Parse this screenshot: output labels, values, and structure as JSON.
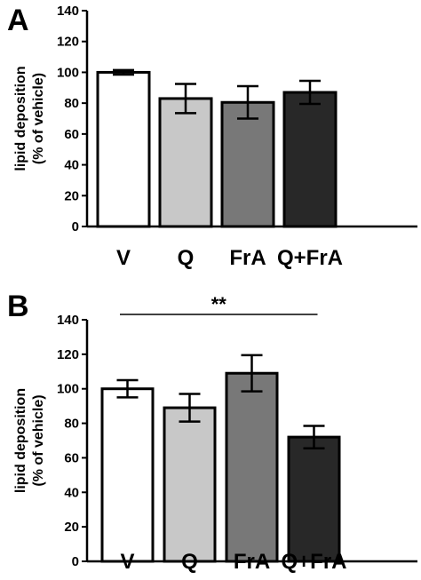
{
  "chart_data": [
    {
      "type": "bar",
      "panel_label": "A",
      "categories": [
        "V",
        "Q",
        "FrA",
        "Q+FrA"
      ],
      "values": [
        100,
        83,
        80.5,
        87
      ],
      "errors": [
        1.5,
        9.5,
        10.5,
        7.5
      ],
      "bar_colors": [
        "#ffffff",
        "#c8c8c8",
        "#787878",
        "#282828"
      ],
      "ylabel_line1": "lipid deposition",
      "ylabel_line2": "(% of vehicle)",
      "yticks": [
        0,
        20,
        40,
        60,
        80,
        100,
        120,
        140
      ],
      "ylim": [
        0,
        140
      ],
      "significance": null
    },
    {
      "type": "bar",
      "panel_label": "B",
      "categories": [
        "V",
        "Q",
        "FrA",
        "Q+FrA"
      ],
      "values": [
        100,
        89,
        109,
        72
      ],
      "errors": [
        5,
        8,
        10.5,
        6.5
      ],
      "bar_colors": [
        "#ffffff",
        "#c8c8c8",
        "#787878",
        "#282828"
      ],
      "ylabel_line1": "lipid deposition",
      "ylabel_line2": "(% of vehicle)",
      "yticks": [
        0,
        20,
        40,
        60,
        80,
        100,
        120,
        140
      ],
      "ylim": [
        0,
        140
      ],
      "significance": {
        "label": "**",
        "from": "V",
        "to": "Q+FrA"
      }
    }
  ]
}
